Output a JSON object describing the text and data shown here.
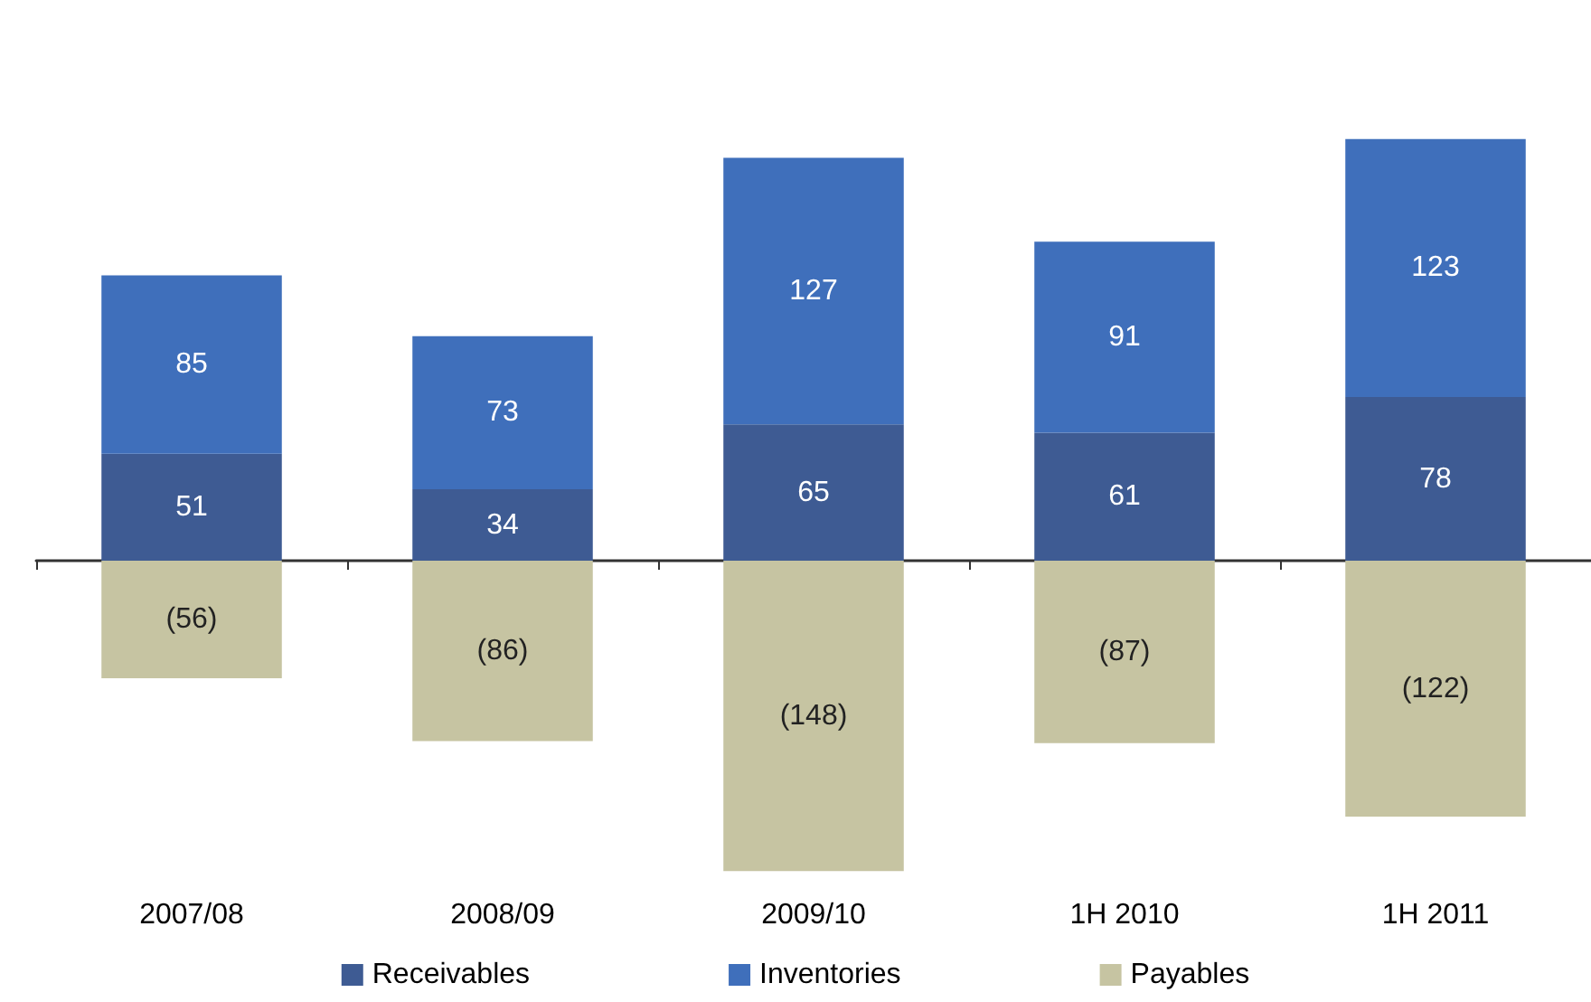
{
  "chart_data": {
    "type": "bar",
    "stacked": true,
    "categories": [
      "2007/08",
      "2008/09",
      "2009/10",
      "1H 2010",
      "1H 2011"
    ],
    "series": [
      {
        "name": "Receivables",
        "color": "#3e5b93",
        "values": [
          51,
          34,
          65,
          61,
          78
        ],
        "value_labels": [
          "51",
          "34",
          "65",
          "61",
          "78"
        ]
      },
      {
        "name": "Inventories",
        "color": "#3f6fbb",
        "values": [
          85,
          73,
          127,
          91,
          123
        ],
        "value_labels": [
          "85",
          "73",
          "127",
          "91",
          "123"
        ]
      },
      {
        "name": "Payables",
        "color": "#c6c4a2",
        "values": [
          -56,
          -86,
          -148,
          -87,
          -122
        ],
        "value_labels": [
          "(56)",
          "(86)",
          "(148)",
          "(87)",
          "(122)"
        ]
      }
    ],
    "legend": "bottom"
  }
}
